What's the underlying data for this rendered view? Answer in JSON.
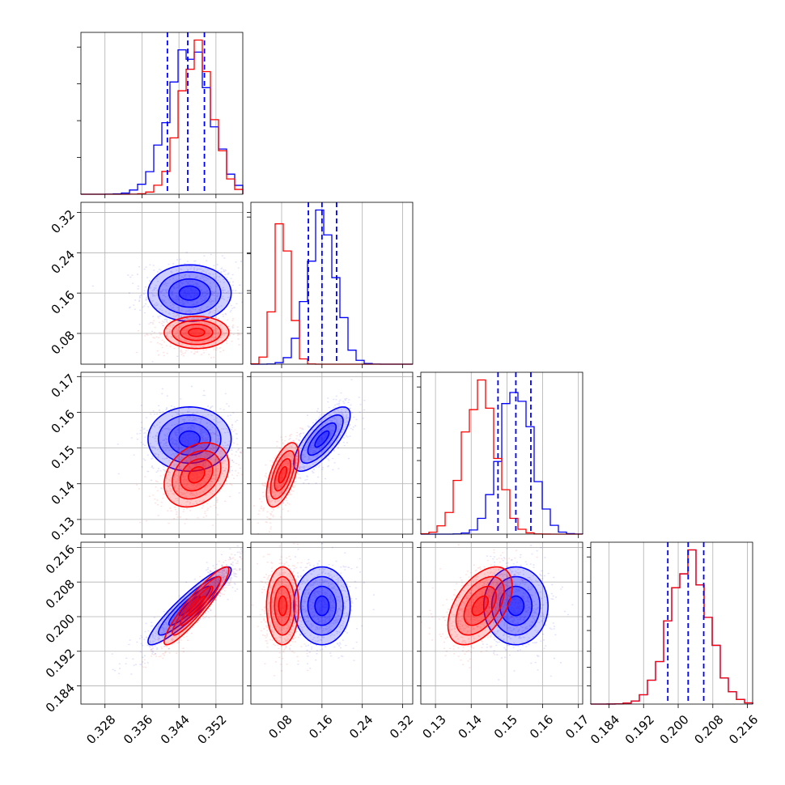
{
  "chart_data": {
    "type": "corner",
    "colors": {
      "series_a": "#0000ff",
      "series_b": "#ff0000",
      "quantile_lines": "#0000ff"
    },
    "grid": true,
    "params": [
      {
        "range": [
          0.3228,
          0.3578
        ],
        "ticks": [
          0.328,
          0.336,
          0.344,
          0.352
        ],
        "tick_labels": [
          "0.328",
          "0.336",
          "0.344",
          "0.352"
        ],
        "mean_a": 0.3463,
        "sd_a": 0.0045,
        "mean_b": 0.3478,
        "sd_b": 0.0035,
        "quantiles_a": [
          0.3415,
          0.3459,
          0.3495
        ]
      },
      {
        "range": [
          0.019,
          0.34
        ],
        "ticks": [
          0.08,
          0.16,
          0.24,
          0.32
        ],
        "tick_labels": [
          "0.08",
          "0.16",
          "0.24",
          "0.32"
        ],
        "mean_a": 0.16,
        "sd_a": 0.028,
        "mean_b": 0.082,
        "sd_b": 0.016,
        "quantiles_a": [
          0.133,
          0.16,
          0.189
        ]
      },
      {
        "range": [
          0.1259,
          0.1712
        ],
        "ticks": [
          0.13,
          0.14,
          0.15,
          0.16,
          0.17
        ],
        "tick_labels": [
          "0.13",
          "0.14",
          "0.15",
          "0.16",
          "0.17"
        ],
        "mean_a": 0.1525,
        "sd_a": 0.0045,
        "mean_b": 0.1425,
        "sd_b": 0.0045,
        "quantiles_a": [
          0.1475,
          0.1525,
          0.1567
        ]
      },
      {
        "range": [
          0.1798,
          0.2172
        ],
        "ticks": [
          0.184,
          0.192,
          0.2,
          0.208,
          0.216
        ],
        "tick_labels": [
          "0.184",
          "0.192",
          "0.200",
          "0.208",
          "0.216"
        ],
        "mean_a": 0.2025,
        "sd_a": 0.0045,
        "mean_b": 0.2025,
        "sd_b": 0.0045,
        "quantiles_a": [
          0.1976,
          0.2023,
          0.2059
        ]
      }
    ],
    "correlations_a": {
      "1-0": 0.0,
      "2-0": 0.0,
      "2-1": 0.75,
      "3-0": 0.92,
      "3-1": 0.0,
      "3-2": 0.0
    },
    "correlations_b": {
      "1-0": 0.0,
      "2-0": 0.3,
      "2-1": 0.6,
      "3-0": 0.92,
      "3-1": 0.0,
      "3-2": 0.5
    },
    "contour_levels_sigma": [
      0.5,
      1.0,
      1.5,
      2.0
    ]
  }
}
